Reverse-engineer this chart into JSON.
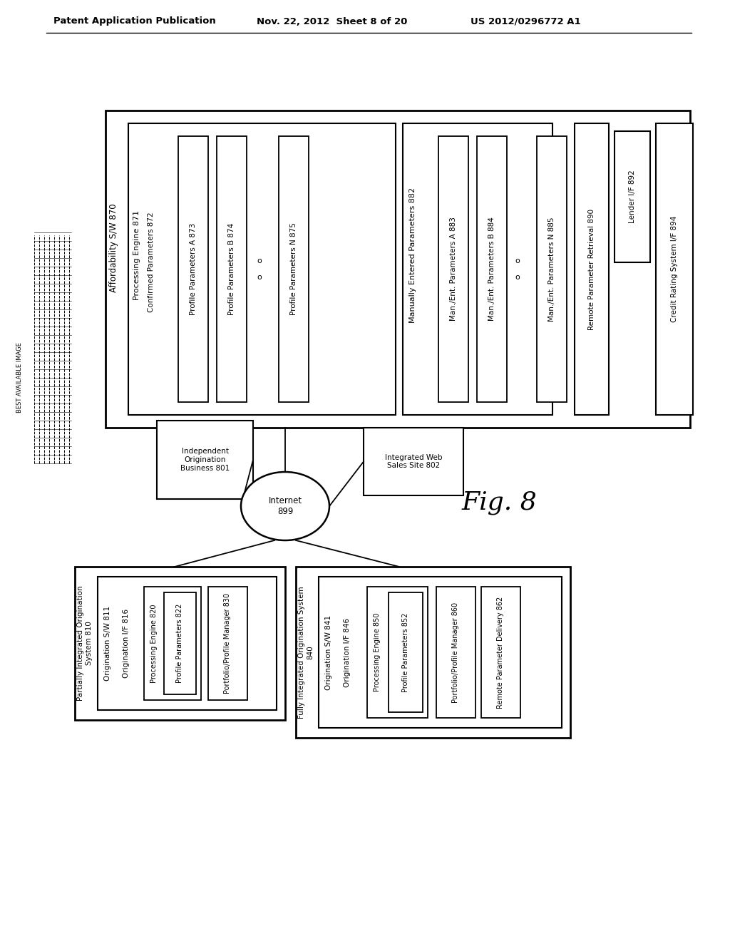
{
  "bg_color": "#ffffff",
  "header_left": "Patent Application Publication",
  "header_mid": "Nov. 22, 2012  Sheet 8 of 20",
  "header_right": "US 2012/0296772 A1",
  "fig_label": "Fig. 8",
  "best_available": "BEST AVAILABLE IMAGE",
  "aff_label": "Affordability S/W 870",
  "proc_engine_871": "Processing Engine 871",
  "confirmed_872": "Confirmed Parameters 872",
  "profile_a_873": "Profile Parameters A 873",
  "profile_b_874": "Profile Parameters B 874",
  "profile_n_875": "Profile Parameters N 875",
  "manually_882": "Manually Entered Parameters 882",
  "man_a_883": "Man./Ent. Parameters A 883",
  "man_b_884": "Man./Ent. Parameters B 884",
  "man_n_885": "Man./Ent. Parameters N 885",
  "remote_890": "Remote Parameter Retrieval 890",
  "lender_892": "Lender I/F 892",
  "credit_894": "Credit Rating System I/F 894",
  "internet_899": "Internet\n899",
  "indep_801": "Independent\nOrigination\nBusiness 801",
  "integ_802": "Integrated Web\nSales Site 802",
  "part_810": "Partially Integrated Origination\nSystem 810",
  "orig_sw_811": "Origination S/W 811",
  "orig_if_816": "Origination I/F 816",
  "proc_820": "Processing Engine 820",
  "prof_822": "Profile Parameters 822",
  "portf_830": "Portfolio/Profile Manager 830",
  "full_840": "Fully Integrated Origination System\n840",
  "orig_sw_841": "Origination S/W 841",
  "orig_if_846": "Origination I/F 846",
  "proc_850": "Processing Engine 850",
  "prof_852": "Profile Parameters 852",
  "portf_860": "Portfolio/Profile Manager 860",
  "remote_862": "Remote Parameter Delivery 862"
}
